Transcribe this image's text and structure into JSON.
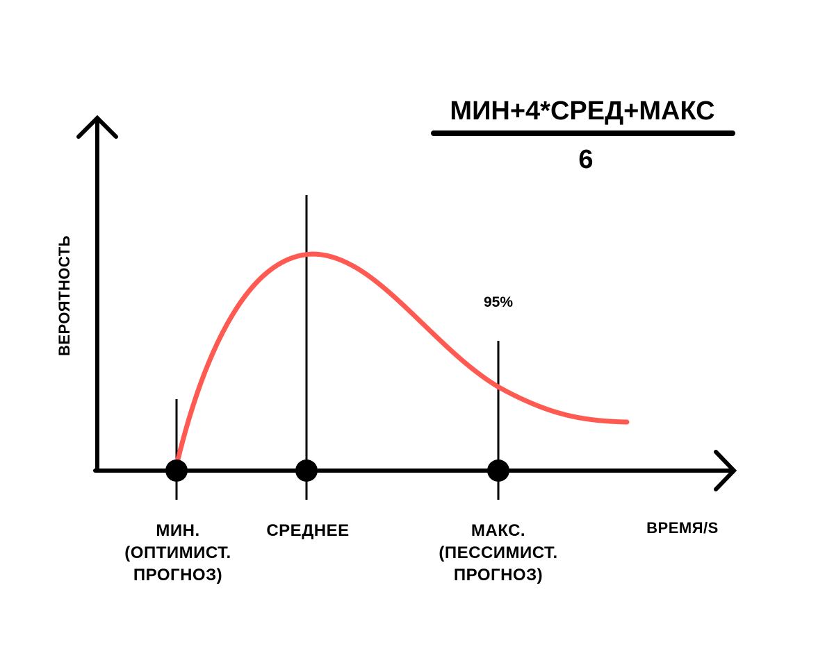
{
  "colors": {
    "curve": "#ff5a52",
    "ink": "#000000",
    "background": "#ffffff"
  },
  "formula": {
    "numerator": "МИН+4*СРЕД+МАКС",
    "denominator": "6"
  },
  "axes": {
    "y_label": "ВЕРОЯТНОСТЬ",
    "x_label": "ВРЕМЯ/S"
  },
  "markers": {
    "min": {
      "lines": [
        "МИН.",
        "(ОПТИМИСТ.",
        "ПРОГНОЗ)"
      ]
    },
    "mean": {
      "lines": [
        "СРЕДНЕЕ"
      ]
    },
    "max": {
      "lines": [
        "МАКС.",
        "(ПЕССИМИСТ.",
        "ПРОГНОЗ)"
      ],
      "annotation": "95%"
    }
  }
}
